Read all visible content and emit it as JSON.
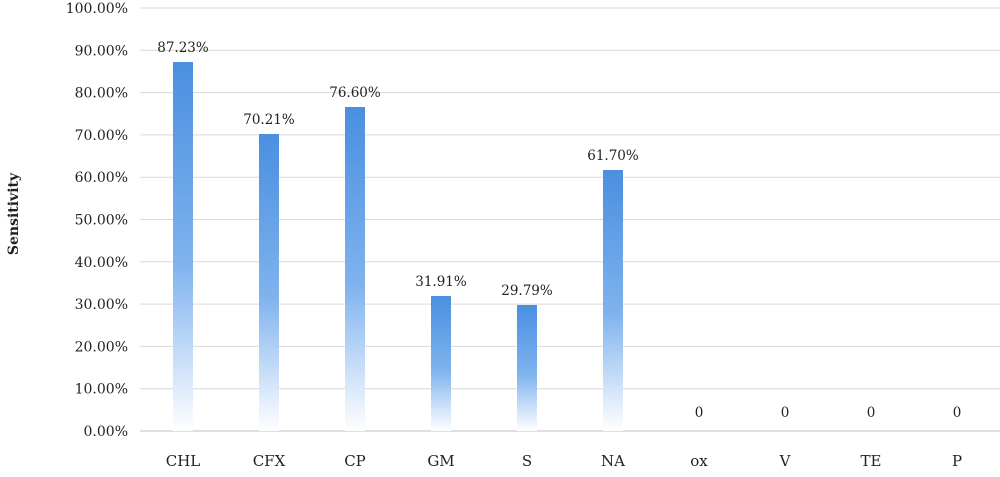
{
  "chart_data": {
    "type": "bar",
    "title": "",
    "xlabel": "",
    "ylabel": "Sensitivity",
    "categories": [
      "CHL",
      "CFX",
      "CP",
      "GM",
      "S",
      "NA",
      "ox",
      "V",
      "TE",
      "P"
    ],
    "values": [
      87.23,
      70.21,
      76.6,
      31.91,
      29.79,
      61.7,
      0,
      0,
      0,
      0
    ],
    "data_labels": [
      "87.23%",
      "70.21%",
      "76.60%",
      "31.91%",
      "29.79%",
      "61.70%",
      "0",
      "0",
      "0",
      "0"
    ],
    "ylim": [
      0,
      100
    ],
    "yticks": [
      0,
      10,
      20,
      30,
      40,
      50,
      60,
      70,
      80,
      90,
      100
    ],
    "ytick_labels": [
      "0.00%",
      "10.00%",
      "20.00%",
      "30.00%",
      "40.00%",
      "50.00%",
      "60.00%",
      "70.00%",
      "80.00%",
      "90.00%",
      "100.00%"
    ],
    "grid": true,
    "legend": "none",
    "colors": {
      "bar_top": "#4a8fe0",
      "bar_bottom": "#ffffff",
      "grid": "#d9d9d9",
      "text": "#222222"
    }
  }
}
